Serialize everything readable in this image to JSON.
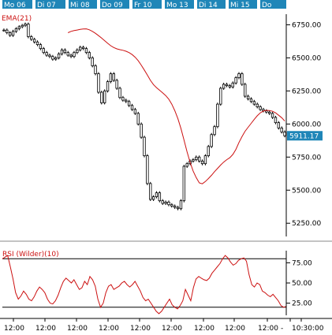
{
  "date_tabs": [
    "Mo 06",
    "Di 07",
    "Mi 08",
    "Do 09",
    "Fr 10",
    "Mo 13",
    "Di 14",
    "Mi 15",
    "Do"
  ],
  "colors": {
    "tab_bg": "#1f86b8",
    "tab_text": "#ffffff",
    "ema": "#cc1111",
    "rsi": "#cc1111",
    "price": "#000000",
    "last_price_bg": "#1f86b8",
    "grid": "#000000"
  },
  "chart_data": [
    {
      "type": "candlestick",
      "legend": "EMA(21)",
      "y_ticks": [
        "6750.00",
        "6500.00",
        "6250.00",
        "6000.00",
        "5750.00",
        "5500.00",
        "5250.00"
      ],
      "ylim": [
        5150,
        6830
      ],
      "last_price": "5911.17",
      "x_labels": [
        "12:00",
        "12:00",
        "12:00",
        "12:00",
        "12:00",
        "12:00",
        "12:00",
        "12:00",
        "12:00",
        "-",
        "10:30:00"
      ],
      "close": [
        6710,
        6690,
        6670,
        6700,
        6720,
        6735,
        6745,
        6755,
        6660,
        6640,
        6620,
        6600,
        6570,
        6540,
        6520,
        6510,
        6490,
        6500,
        6530,
        6560,
        6540,
        6520,
        6510,
        6540,
        6560,
        6580,
        6570,
        6540,
        6500,
        6440,
        6380,
        6240,
        6160,
        6250,
        6320,
        6380,
        6330,
        6270,
        6200,
        6180,
        6170,
        6140,
        6110,
        6080,
        6000,
        5900,
        5760,
        5550,
        5430,
        5450,
        5480,
        5420,
        5400,
        5410,
        5390,
        5380,
        5370,
        5360,
        5420,
        5680,
        5700,
        5720,
        5730,
        5750,
        5720,
        5700,
        5760,
        5830,
        5920,
        5980,
        6150,
        6270,
        6300,
        6290,
        6280,
        6310,
        6350,
        6380,
        6300,
        6210,
        6190,
        6170,
        6150,
        6130,
        6110,
        6100,
        6090,
        6080,
        6050,
        6010,
        5970,
        5940,
        5911
      ],
      "ema": [
        6690,
        6700,
        6706,
        6710,
        6715,
        6718,
        6719,
        6712,
        6700,
        6685,
        6668,
        6650,
        6630,
        6610,
        6592,
        6578,
        6568,
        6562,
        6557,
        6550,
        6540,
        6525,
        6505,
        6478,
        6445,
        6408,
        6370,
        6330,
        6298,
        6275,
        6255,
        6236,
        6215,
        6188,
        6150,
        6100,
        6040,
        5965,
        5880,
        5790,
        5710,
        5645,
        5595,
        5555,
        5548,
        5565,
        5588,
        5612,
        5640,
        5665,
        5690,
        5712,
        5730,
        5745,
        5770,
        5808,
        5860,
        5905,
        5945,
        5975,
        6005,
        6035,
        6062,
        6085,
        6098,
        6103,
        6102,
        6096,
        6084,
        6066,
        6048,
        6022
      ],
      "ema_start": 21,
      "series": [
        {
          "name": "EMA(21)"
        }
      ]
    },
    {
      "type": "line",
      "legend": "RSI (Wilder)(10)",
      "y_ticks": [
        "75.00",
        "50.00",
        "25.00"
      ],
      "ylim": [
        10,
        90
      ],
      "reference_lines": [
        80,
        20
      ],
      "values": [
        80,
        82,
        84,
        70,
        55,
        38,
        30,
        34,
        40,
        36,
        30,
        28,
        33,
        40,
        45,
        42,
        38,
        30,
        25,
        24,
        28,
        35,
        44,
        52,
        56,
        53,
        50,
        54,
        48,
        42,
        44,
        52,
        48,
        58,
        54,
        46,
        30,
        20,
        25,
        38,
        46,
        48,
        42,
        44,
        46,
        50,
        52,
        48,
        45,
        48,
        52,
        46,
        40,
        32,
        28,
        30,
        25,
        20,
        15,
        12,
        15,
        20,
        25,
        30,
        23,
        20,
        18,
        22,
        28,
        42,
        35,
        28,
        44,
        55,
        58,
        56,
        54,
        53,
        56,
        62,
        66,
        70,
        74,
        80,
        84,
        81,
        76,
        72,
        74,
        78,
        80,
        81,
        77,
        60,
        48,
        45,
        50,
        48,
        40,
        38,
        35,
        33,
        36,
        32,
        28,
        22,
        20,
        21
      ]
    }
  ]
}
